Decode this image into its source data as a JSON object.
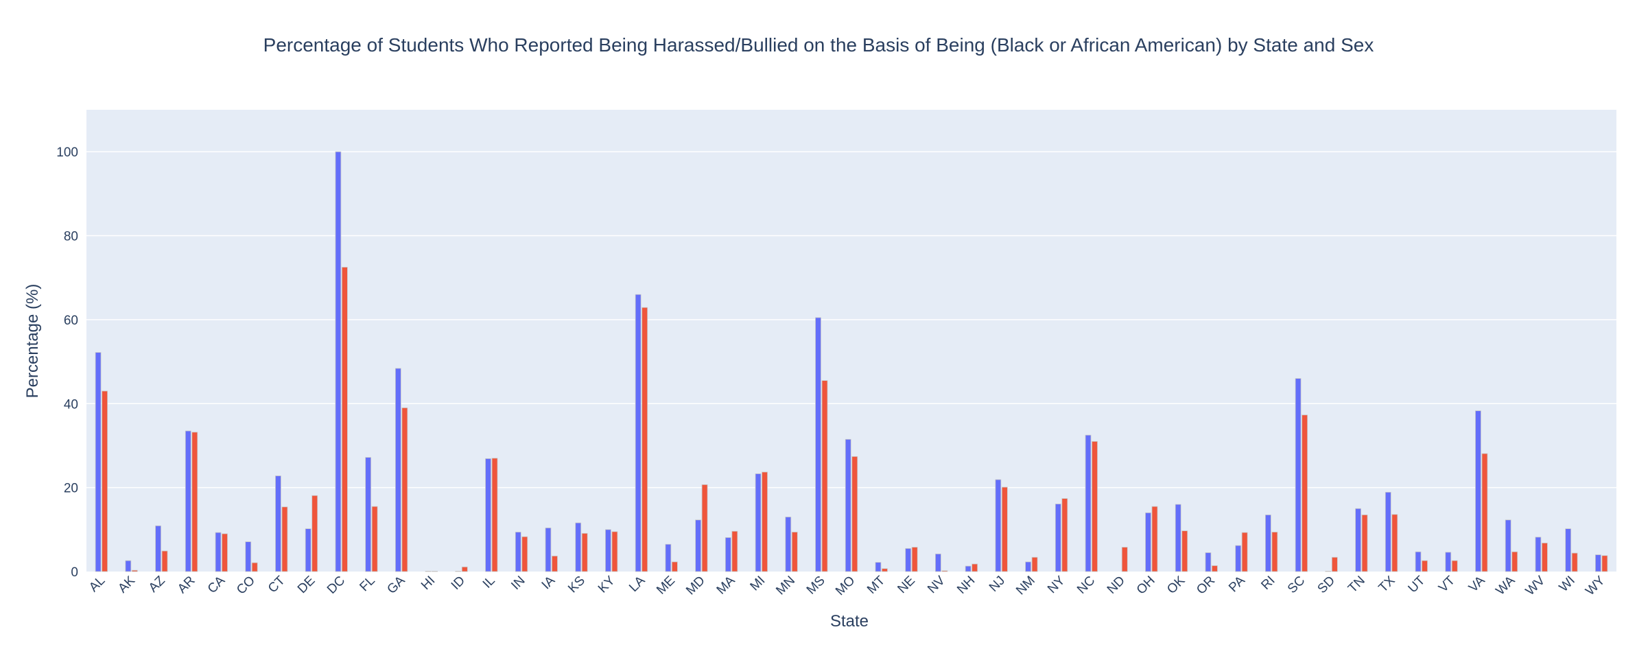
{
  "chart_data": {
    "type": "bar",
    "title": "Percentage of Students Who Reported Being Harassed/Bullied on the Basis of Being (Black or African American) by State and Sex",
    "xlabel": "State",
    "ylabel": "Percentage (%)",
    "ylim": [
      0,
      110
    ],
    "yticks": [
      0,
      20,
      40,
      60,
      80,
      100
    ],
    "grid": true,
    "legend": "none",
    "categories": [
      "AL",
      "AK",
      "AZ",
      "AR",
      "CA",
      "CO",
      "CT",
      "DE",
      "DC",
      "FL",
      "GA",
      "HI",
      "ID",
      "IL",
      "IN",
      "IA",
      "KS",
      "KY",
      "LA",
      "ME",
      "MD",
      "MA",
      "MI",
      "MN",
      "MS",
      "MO",
      "MT",
      "NE",
      "NV",
      "NH",
      "NJ",
      "NM",
      "NY",
      "NC",
      "ND",
      "OH",
      "OK",
      "OR",
      "PA",
      "RI",
      "SC",
      "SD",
      "TN",
      "TX",
      "UT",
      "VT",
      "VA",
      "WA",
      "WV",
      "WI",
      "WY"
    ],
    "series": [
      {
        "color": "#636efa",
        "values": [
          52.2,
          2.6,
          10.9,
          33.5,
          9.3,
          7.1,
          22.8,
          10.2,
          100.0,
          27.2,
          48.4,
          0.1,
          0.1,
          26.9,
          9.4,
          10.4,
          11.6,
          10.0,
          66.0,
          6.5,
          12.3,
          8.1,
          23.3,
          13.0,
          60.5,
          31.5,
          2.2,
          5.5,
          4.2,
          1.3,
          21.9,
          2.3,
          16.1,
          32.5,
          0.0,
          14.0,
          16.0,
          4.5,
          6.2,
          13.5,
          46.0,
          0.1,
          15.0,
          18.9,
          4.7,
          4.6,
          38.3,
          12.3,
          8.2,
          10.2,
          4.0
        ]
      },
      {
        "color": "#ef553b",
        "values": [
          43.0,
          0.3,
          4.9,
          33.2,
          9.0,
          2.1,
          15.4,
          18.1,
          72.5,
          15.5,
          39.0,
          0.1,
          1.1,
          27.0,
          8.3,
          3.7,
          9.1,
          9.5,
          62.9,
          2.3,
          20.7,
          9.6,
          23.7,
          9.4,
          45.5,
          27.4,
          0.7,
          5.8,
          0.2,
          1.8,
          20.1,
          3.4,
          17.4,
          31.0,
          5.8,
          15.5,
          9.7,
          1.4,
          9.3,
          9.4,
          37.3,
          3.4,
          13.5,
          13.6,
          2.6,
          2.6,
          28.1,
          4.7,
          6.8,
          4.4,
          3.8
        ]
      }
    ]
  }
}
